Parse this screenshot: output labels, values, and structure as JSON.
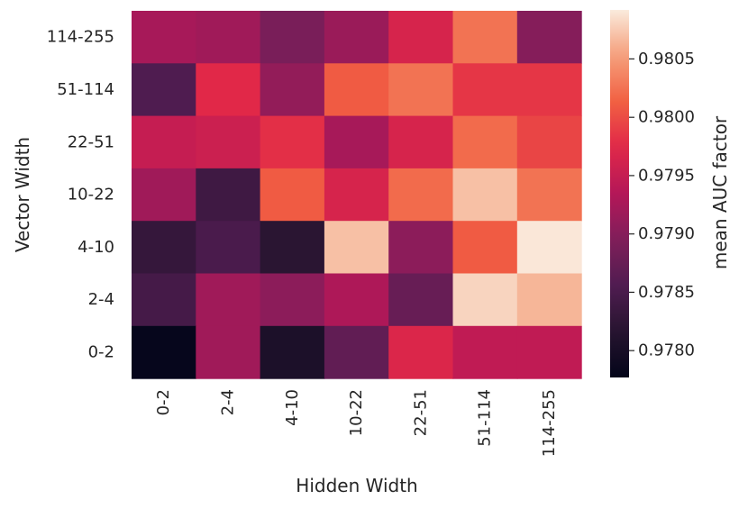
{
  "chart_data": {
    "type": "heatmap",
    "xlabel": "Hidden Width",
    "ylabel": "Vector Width",
    "x_categories": [
      "0-2",
      "2-4",
      "4-10",
      "10-22",
      "22-51",
      "51-114",
      "114-255"
    ],
    "y_categories": [
      "114-255",
      "51-114",
      "22-51",
      "10-22",
      "4-10",
      "2-4",
      "0-2"
    ],
    "values": [
      [
        0.97925,
        0.9792,
        0.9789,
        0.97915,
        0.97965,
        0.98025,
        0.979
      ],
      [
        0.97855,
        0.97975,
        0.9791,
        0.9801,
        0.98025,
        0.97985,
        0.97985
      ],
      [
        0.9795,
        0.97955,
        0.9798,
        0.97925,
        0.97965,
        0.9802,
        0.97995
      ],
      [
        0.9792,
        0.9784,
        0.9801,
        0.97965,
        0.9802,
        0.9807,
        0.98025
      ],
      [
        0.9783,
        0.9785,
        0.9782,
        0.9807,
        0.97905,
        0.9801,
        0.9809
      ],
      [
        0.97845,
        0.9792,
        0.97905,
        0.9793,
        0.97875,
        0.9808,
        0.98065
      ],
      [
        0.9778,
        0.9792,
        0.97805,
        0.9787,
        0.9797,
        0.97945,
        0.97945
      ]
    ],
    "colorbar": {
      "label": "mean AUC factor",
      "ticks": [
        "0.9780",
        "0.9785",
        "0.9790",
        "0.9795",
        "0.9800",
        "0.9805"
      ],
      "vmin": 0.97777,
      "vmax": 0.98092,
      "colormap": "rocket"
    }
  }
}
